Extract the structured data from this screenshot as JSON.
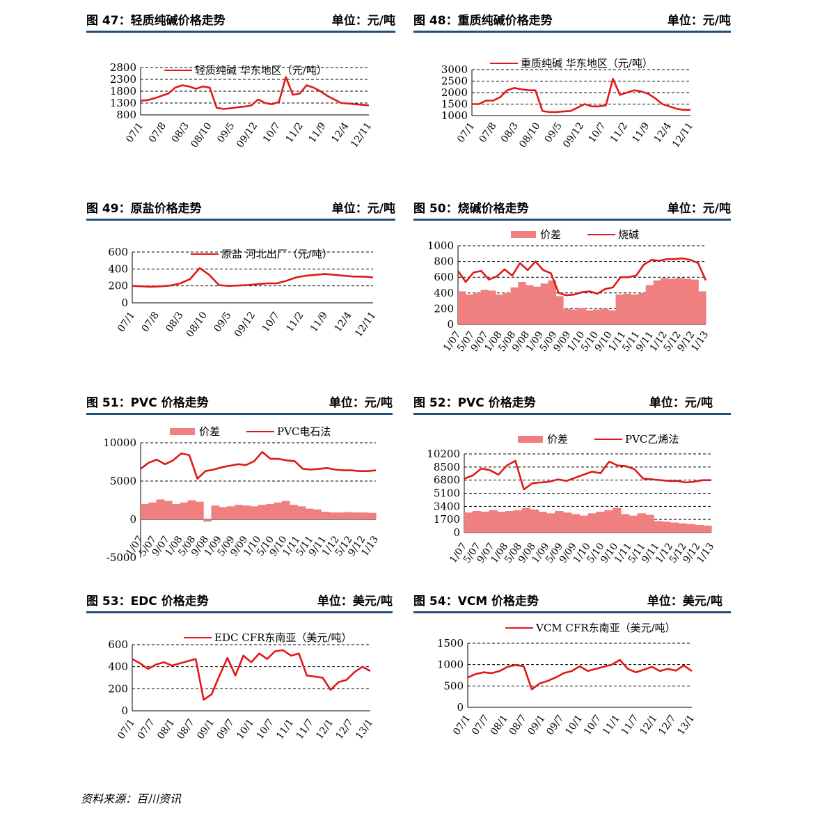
{
  "colors": {
    "line": "#e01818",
    "spread": "#f08080",
    "rule": "#1f4e79",
    "grid": "#000000"
  },
  "panels": [
    {
      "id": "p47",
      "title": "图 47：轻质纯碱价格走势",
      "unit": "单位：元/吨"
    },
    {
      "id": "p48",
      "title": "图 48：重质纯碱价格走势",
      "unit": "单位：元/吨"
    },
    {
      "id": "p49",
      "title": "图 49：原盐价格走势",
      "unit": "单位：元/吨"
    },
    {
      "id": "p50",
      "title": "图 50：烧碱价格走势",
      "unit": "单位：元/吨"
    },
    {
      "id": "p51",
      "title": "图 51：PVC 价格走势",
      "unit": "单位：元/吨"
    },
    {
      "id": "p52",
      "title": "图 52：PVC 价格走势",
      "unit": "单位：元/吨"
    },
    {
      "id": "p53",
      "title": "图 53：EDC 价格走势",
      "unit": "单位：美元/吨"
    },
    {
      "id": "p54",
      "title": "图 54：VCM 价格走势",
      "unit": "单位：美元/吨"
    }
  ],
  "source": "资料来源：百川资讯",
  "chart_data": [
    {
      "type": "line",
      "title": "轻质纯碱价格走势",
      "ylim": [
        800,
        2800
      ],
      "yticks": [
        800,
        1300,
        1800,
        2300,
        2800
      ],
      "xticks": [
        "07/1",
        "07/8",
        "08/3",
        "08/10",
        "09/5",
        "09/12",
        "10/7",
        "11/2",
        "11/9",
        "12/4",
        "12/11"
      ],
      "series": [
        {
          "name": "轻质纯碱 华东地区（元/吨）",
          "values": [
            1400,
            1420,
            1500,
            1600,
            1700,
            1950,
            2050,
            2000,
            1900,
            2000,
            1950,
            1100,
            1050,
            1080,
            1120,
            1150,
            1200,
            1450,
            1300,
            1250,
            1350,
            2400,
            1650,
            1700,
            2050,
            1950,
            1800,
            1600,
            1450,
            1300,
            1280,
            1250,
            1230,
            1200
          ]
        }
      ]
    },
    {
      "type": "line",
      "title": "重质纯碱价格走势",
      "ylim": [
        1000,
        3000
      ],
      "yticks": [
        1000,
        1500,
        2000,
        2500,
        3000
      ],
      "xticks": [
        "07/1",
        "07/8",
        "08/3",
        "08/10",
        "09/5",
        "09/12",
        "10/7",
        "11/2",
        "11/9",
        "12/4",
        "12/11"
      ],
      "series": [
        {
          "name": "重质纯碱 华东地区（元/吨）",
          "values": [
            1500,
            1500,
            1650,
            1650,
            1800,
            2100,
            2200,
            2150,
            2100,
            2100,
            1200,
            1150,
            1150,
            1180,
            1200,
            1350,
            1500,
            1400,
            1400,
            1450,
            2600,
            1900,
            2000,
            2100,
            2050,
            1950,
            1750,
            1500,
            1400,
            1300,
            1250,
            1250
          ]
        }
      ]
    },
    {
      "type": "line",
      "title": "原盐价格走势",
      "ylim": [
        0,
        600
      ],
      "yticks": [
        0,
        200,
        400,
        600
      ],
      "xticks": [
        "07/1",
        "07/8",
        "08/3",
        "08/10",
        "09/5",
        "09/12",
        "10/7",
        "11/2",
        "11/9",
        "12/4",
        "12/11"
      ],
      "series": [
        {
          "name": "原盐 河北出厂（元/吨）",
          "values": [
            200,
            195,
            190,
            195,
            205,
            230,
            280,
            410,
            330,
            210,
            200,
            205,
            210,
            220,
            230,
            230,
            260,
            300,
            320,
            330,
            340,
            330,
            320,
            310,
            310,
            300
          ]
        }
      ]
    },
    {
      "type": "bar+line",
      "title": "烧碱价格走势",
      "ylim": [
        0,
        1000
      ],
      "yticks": [
        0,
        200,
        400,
        600,
        800,
        1000
      ],
      "xticks": [
        "1/07",
        "5/07",
        "9/07",
        "1/08",
        "5/08",
        "9/08",
        "1/09",
        "5/09",
        "9/09",
        "1/10",
        "5/10",
        "9/10",
        "1/11",
        "5/11",
        "9/11",
        "1/12",
        "5/12",
        "9/12",
        "1/13"
      ],
      "series": [
        {
          "name": "价差",
          "kind": "bar",
          "values": [
            420,
            380,
            400,
            440,
            430,
            380,
            400,
            470,
            540,
            500,
            480,
            520,
            560,
            360,
            200,
            190,
            210,
            180,
            190,
            200,
            180,
            380,
            390,
            380,
            400,
            500,
            560,
            590,
            580,
            590,
            580,
            570,
            420
          ]
        },
        {
          "name": "烧碱",
          "kind": "line",
          "values": [
            680,
            540,
            660,
            680,
            570,
            610,
            700,
            620,
            780,
            690,
            800,
            690,
            650,
            400,
            370,
            380,
            410,
            420,
            390,
            450,
            470,
            600,
            600,
            620,
            760,
            820,
            810,
            830,
            830,
            840,
            820,
            780,
            560
          ]
        }
      ]
    },
    {
      "type": "bar+line",
      "title": "PVC 价格走势",
      "ylim": [
        -5000,
        10000
      ],
      "yticks": [
        -5000,
        0,
        5000,
        10000
      ],
      "xticks": [
        "1/07",
        "5/07",
        "9/07",
        "1/08",
        "5/08",
        "9/08",
        "1/09",
        "5/09",
        "9/09",
        "1/10",
        "5/10",
        "9/10",
        "1/11",
        "5/11",
        "9/11",
        "1/12",
        "5/12",
        "9/12",
        "1/13"
      ],
      "series": [
        {
          "name": "价差",
          "kind": "bar",
          "values": [
            2000,
            2200,
            2600,
            2400,
            2000,
            2200,
            2500,
            2300,
            -300,
            1800,
            1600,
            1700,
            1900,
            1800,
            1700,
            1900,
            2000,
            2200,
            2400,
            1900,
            1700,
            1400,
            1300,
            1000,
            900,
            900,
            950,
            900,
            900,
            850
          ]
        },
        {
          "name": "PVC电石法",
          "kind": "line",
          "values": [
            6600,
            7400,
            7800,
            7200,
            7700,
            8600,
            8400,
            5300,
            6300,
            6500,
            6800,
            7000,
            7200,
            7100,
            7600,
            8800,
            7900,
            7900,
            7700,
            7600,
            6600,
            6500,
            6600,
            6700,
            6500,
            6400,
            6400,
            6300,
            6300,
            6400
          ]
        }
      ]
    },
    {
      "type": "bar+line",
      "title": "PVC 价格走势",
      "ylim": [
        0,
        10200
      ],
      "yticks": [
        0,
        1700,
        3400,
        5100,
        6800,
        8500,
        10200
      ],
      "xticks": [
        "1/07",
        "5/07",
        "9/07",
        "1/08",
        "5/08",
        "9/08",
        "1/09",
        "5/09",
        "9/09",
        "1/10",
        "5/10",
        "9/10",
        "1/11",
        "5/11",
        "9/11",
        "1/12",
        "5/12",
        "9/12",
        "1/13"
      ],
      "series": [
        {
          "name": "价差",
          "kind": "bar",
          "values": [
            2600,
            2800,
            2700,
            2900,
            2700,
            2800,
            2900,
            3200,
            3000,
            2700,
            2500,
            2800,
            2600,
            2400,
            2200,
            2500,
            2700,
            2900,
            3200,
            2400,
            2200,
            2500,
            2300,
            1500,
            1400,
            1300,
            1200,
            1100,
            1000,
            900
          ]
        },
        {
          "name": "PVC乙烯法",
          "kind": "line",
          "values": [
            7000,
            7400,
            8300,
            8100,
            7500,
            8700,
            9300,
            5600,
            6400,
            6500,
            6600,
            6900,
            6700,
            7100,
            7500,
            7900,
            7700,
            9200,
            8700,
            8600,
            8200,
            7000,
            6900,
            6800,
            6700,
            6700,
            6500,
            6600,
            6800,
            6800
          ]
        }
      ]
    },
    {
      "type": "line",
      "title": "EDC 价格走势",
      "ylim": [
        0,
        600
      ],
      "yticks": [
        0,
        200,
        400,
        600
      ],
      "xticks": [
        "07/1",
        "07/7",
        "08/1",
        "08/7",
        "09/1",
        "09/7",
        "10/1",
        "10/7",
        "11/1",
        "11/7",
        "12/1",
        "12/7",
        "13/1"
      ],
      "series": [
        {
          "name": "EDC CFR东南亚（美元/吨）",
          "values": [
            470,
            430,
            380,
            420,
            440,
            410,
            430,
            450,
            470,
            100,
            150,
            320,
            480,
            320,
            500,
            440,
            520,
            470,
            540,
            550,
            500,
            520,
            320,
            310,
            300,
            190,
            260,
            280,
            350,
            400,
            360
          ]
        }
      ]
    },
    {
      "type": "line",
      "title": "VCM 价格走势",
      "ylim": [
        0,
        1500
      ],
      "yticks": [
        0,
        500,
        1000,
        1500
      ],
      "xticks": [
        "07/1",
        "07/7",
        "08/1",
        "08/7",
        "09/1",
        "09/7",
        "10/1",
        "10/7",
        "11/1",
        "11/7",
        "12/1",
        "12/7",
        "13/1"
      ],
      "series": [
        {
          "name": "VCM CFR东南亚（美元/吨）",
          "values": [
            700,
            780,
            820,
            800,
            850,
            950,
            990,
            960,
            420,
            560,
            620,
            700,
            800,
            850,
            960,
            850,
            900,
            950,
            1000,
            1110,
            900,
            820,
            880,
            950,
            850,
            900,
            860,
            980,
            850
          ]
        }
      ]
    }
  ]
}
